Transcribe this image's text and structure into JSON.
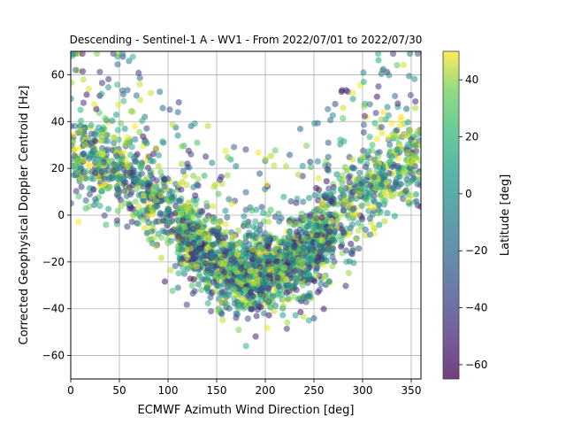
{
  "chart_data": {
    "type": "scatter",
    "title": "Descending - Sentinel-1 A - WV1 - From 2022/07/01 to 2022/07/30",
    "xlabel": "ECMWF Azimuth Wind Direction [deg]",
    "ylabel": "Corrected Geophysical Doppler Centroid [Hz]",
    "xlim": [
      0,
      360
    ],
    "ylim": [
      -70,
      70
    ],
    "xticks": [
      0,
      50,
      100,
      150,
      200,
      250,
      300,
      350
    ],
    "yticks": [
      -60,
      -40,
      -20,
      0,
      20,
      40,
      60
    ],
    "grid": true,
    "colorbar": {
      "label": "Latitude [deg]",
      "colormap": "viridis",
      "range": [
        -65,
        50
      ],
      "ticks": [
        -60,
        -40,
        -20,
        0,
        20,
        40
      ]
    },
    "point_alpha": 0.55,
    "pattern": "Dense V-shaped cloud of points: Doppler centroid ~ +25 Hz near 0/360 deg, minimum ~ -25 Hz near 190 deg; point color = latitude",
    "sample_points": [
      [
        5,
        62,
        -30
      ],
      [
        10,
        45,
        10
      ],
      [
        15,
        30,
        40
      ],
      [
        20,
        25,
        0
      ],
      [
        25,
        18,
        -40
      ],
      [
        30,
        22,
        20
      ],
      [
        40,
        12,
        35
      ],
      [
        50,
        10,
        -10
      ],
      [
        60,
        5,
        15
      ],
      [
        75,
        -2,
        30
      ],
      [
        90,
        -8,
        5
      ],
      [
        100,
        -12,
        25
      ],
      [
        120,
        -18,
        40
      ],
      [
        140,
        -25,
        10
      ],
      [
        150,
        -30,
        -20
      ],
      [
        160,
        -35,
        0
      ],
      [
        170,
        -42,
        -30
      ],
      [
        180,
        -28,
        20
      ],
      [
        190,
        -25,
        35
      ],
      [
        200,
        -30,
        -10
      ],
      [
        210,
        -22,
        15
      ],
      [
        220,
        -18,
        5
      ],
      [
        230,
        -14,
        -40
      ],
      [
        240,
        -10,
        25
      ],
      [
        250,
        -5,
        10
      ],
      [
        260,
        5,
        45
      ],
      [
        270,
        10,
        0
      ],
      [
        280,
        15,
        30
      ],
      [
        290,
        20,
        -20
      ],
      [
        300,
        25,
        40
      ],
      [
        310,
        30,
        15
      ],
      [
        320,
        35,
        45
      ],
      [
        330,
        25,
        -5
      ],
      [
        340,
        28,
        20
      ],
      [
        350,
        22,
        35
      ]
    ]
  },
  "labels": {
    "colorbar_label": "Latitude [deg]"
  }
}
